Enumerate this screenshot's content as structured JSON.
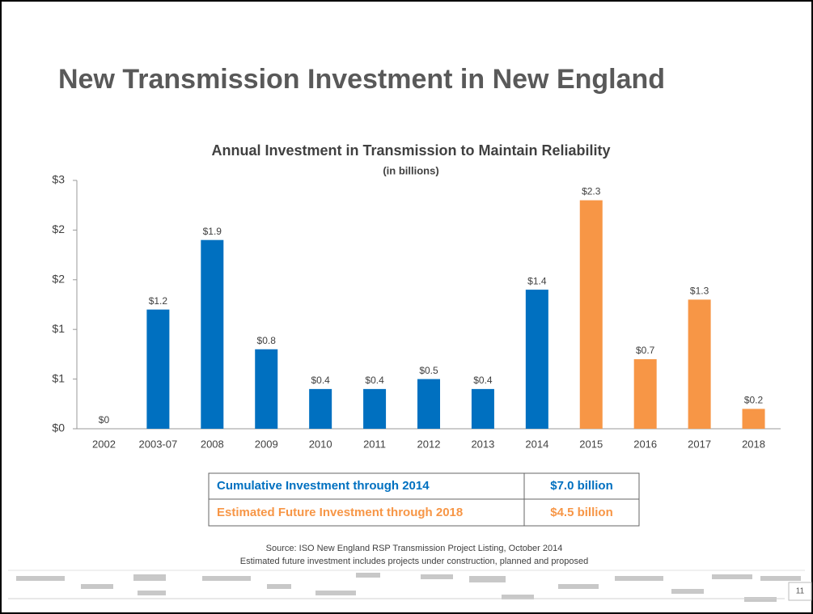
{
  "slide_title": "New Transmission Investment in New England",
  "chart_data": {
    "type": "bar",
    "title": "Annual Investment in Transmission to Maintain Reliability",
    "subtitle": "(in billions)",
    "categories": [
      "2002",
      "2003-07",
      "2008",
      "2009",
      "2010",
      "2011",
      "2012",
      "2013",
      "2014",
      "2015",
      "2016",
      "2017",
      "2018"
    ],
    "values": [
      0,
      1.2,
      1.9,
      0.8,
      0.4,
      0.4,
      0.5,
      0.4,
      1.4,
      2.3,
      0.7,
      1.3,
      0.2
    ],
    "value_labels": [
      "$0",
      "$1.2",
      "$1.9",
      "$0.8",
      "$0.4",
      "$0.4",
      "$0.5",
      "$0.4",
      "$1.4",
      "$2.3",
      "$0.7",
      "$1.3",
      "$0.2"
    ],
    "colors": [
      "#0070c0",
      "#0070c0",
      "#0070c0",
      "#0070c0",
      "#0070c0",
      "#0070c0",
      "#0070c0",
      "#0070c0",
      "#0070c0",
      "#f79646",
      "#f79646",
      "#f79646",
      "#f79646"
    ],
    "ylim": [
      0,
      2.5
    ],
    "yticks": [
      {
        "value": 0,
        "label": "$0"
      },
      {
        "value": 0.5,
        "label": "$1"
      },
      {
        "value": 1,
        "label": "$1"
      },
      {
        "value": 1.5,
        "label": "$2"
      },
      {
        "value": 2,
        "label": "$2"
      },
      {
        "value": 2.5,
        "label": "$3"
      }
    ]
  },
  "summary_table": {
    "rows": [
      [
        "Cumulative Investment through 2014",
        "$7.0 billion"
      ],
      [
        "Estimated Future Investment through 2018",
        "$4.5 billion"
      ]
    ],
    "row_colors": [
      "#0070c0",
      "#f79646"
    ]
  },
  "source": [
    "Source: ISO New England RSP Transmission Project Listing, October 2014",
    "Estimated future investment includes projects under construction, planned and proposed"
  ],
  "page_number": "11"
}
